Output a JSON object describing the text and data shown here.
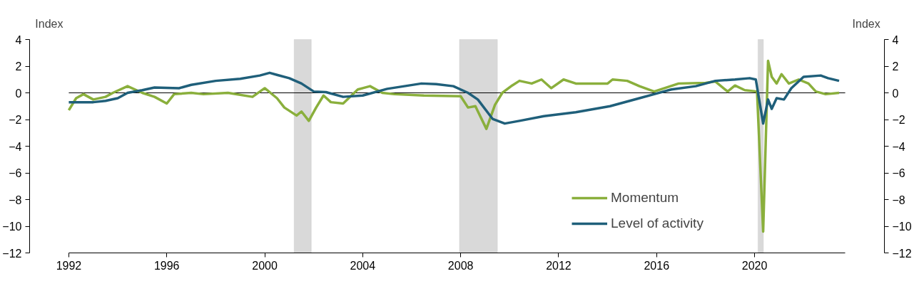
{
  "chart_data": {
    "type": "line",
    "ylabel": "Index",
    "y2label": "Index",
    "xlim": [
      1992,
      2023.7
    ],
    "xticks": [
      1992,
      1996,
      2000,
      2004,
      2008,
      2012,
      2016,
      2020
    ],
    "ylim": [
      -12,
      4
    ],
    "yticks": [
      -12,
      -10,
      -8,
      -6,
      -4,
      -2,
      0,
      2,
      4
    ],
    "y2lim": [
      -12,
      4
    ],
    "y2ticks": [
      -12,
      -10,
      -8,
      -6,
      -4,
      -2,
      0,
      2,
      4
    ],
    "grid": false,
    "legend": "bottom right",
    "marker": "none",
    "line_style": "solid",
    "ref_lines": [
      {
        "axis": "y",
        "value": 0,
        "label": null,
        "color": "#000000"
      }
    ],
    "bands": [
      {
        "axis": "x",
        "from": 2001.2,
        "to": 2001.9,
        "label": null,
        "color": "#d9d9d9"
      },
      {
        "axis": "x",
        "from": 2007.95,
        "to": 2009.5,
        "label": null,
        "color": "#d9d9d9"
      },
      {
        "axis": "x",
        "from": 2020.14,
        "to": 2020.36,
        "label": null,
        "color": "#d9d9d9"
      }
    ],
    "series": [
      {
        "name": "Momentum",
        "color": "#8aaf3c",
        "x": [
          1992,
          1992.3,
          1992.6,
          1993,
          1993.5,
          1993.8,
          1994.4,
          1995,
          1995.5,
          1996,
          1996.3,
          1997,
          1997.5,
          1998.5,
          1999.5,
          2000.0,
          2000.5,
          2000.8,
          2001.3,
          2001.5,
          2001.8,
          2002.1,
          2002.4,
          2002.7,
          2003.2,
          2003.8,
          2004.3,
          2004.8,
          2005.3,
          2006.5,
          2008.0,
          2008.3,
          2008.6,
          2009.05,
          2009.4,
          2009.7,
          2010.1,
          2010.4,
          2010.9,
          2011.3,
          2011.7,
          2012.2,
          2012.7,
          2014.0,
          2014.2,
          2014.8,
          2015.3,
          2015.9,
          2016.9,
          2018.0,
          2018.4,
          2018.9,
          2019.2,
          2019.6,
          2020.1,
          2020.35,
          2020.55,
          2020.7,
          2020.9,
          2021.1,
          2021.4,
          2021.8,
          2022.2,
          2022.5,
          2022.9,
          2023.45
        ],
        "values": [
          -1.3,
          -0.4,
          -0.1,
          -0.5,
          -0.3,
          0.0,
          0.5,
          0.0,
          -0.3,
          -0.8,
          -0.1,
          0.0,
          -0.1,
          0.0,
          -0.3,
          0.35,
          -0.4,
          -1.1,
          -1.7,
          -1.4,
          -2.1,
          -1.1,
          -0.2,
          -0.7,
          -0.8,
          0.25,
          0.5,
          0.0,
          -0.1,
          -0.2,
          -0.25,
          -1.1,
          -1.0,
          -2.7,
          -0.9,
          0.0,
          0.55,
          0.9,
          0.7,
          1.0,
          0.35,
          1.0,
          0.7,
          0.7,
          1.0,
          0.9,
          0.5,
          0.1,
          0.7,
          0.75,
          0.85,
          0.1,
          0.55,
          0.2,
          0.1,
          -10.4,
          2.4,
          1.2,
          0.7,
          1.4,
          0.7,
          1.0,
          0.7,
          0.1,
          -0.1,
          0.0
        ]
      },
      {
        "name": "Level of activity",
        "color": "#1f5f7a",
        "x": [
          1992,
          1993,
          1993.5,
          1994,
          1994.4,
          1995,
          1995.5,
          1996.5,
          1997,
          1998,
          1999,
          1999.8,
          2000.2,
          2000.5,
          2001.0,
          2001.5,
          2002.0,
          2002.5,
          2003.2,
          2004.0,
          2005.0,
          2006.4,
          2007.0,
          2007.7,
          2008.3,
          2008.7,
          2009.3,
          2009.8,
          2010.4,
          2011.4,
          2012.7,
          2014.1,
          2015.3,
          2015.9,
          2016.6,
          2017.6,
          2018.4,
          2019.2,
          2019.8,
          2020.05,
          2020.35,
          2020.55,
          2020.7,
          2020.9,
          2021.2,
          2021.5,
          2022.0,
          2022.7,
          2023.0,
          2023.45
        ],
        "values": [
          -0.7,
          -0.7,
          -0.6,
          -0.4,
          0.0,
          0.2,
          0.4,
          0.35,
          0.6,
          0.9,
          1.05,
          1.3,
          1.5,
          1.35,
          1.1,
          0.7,
          0.1,
          0.05,
          -0.3,
          -0.2,
          0.3,
          0.7,
          0.65,
          0.5,
          0.0,
          -0.5,
          -1.95,
          -2.3,
          -2.1,
          -1.75,
          -1.45,
          -1.0,
          -0.4,
          -0.1,
          0.25,
          0.5,
          0.9,
          1.0,
          1.1,
          1.0,
          -2.3,
          -0.5,
          -1.2,
          -0.4,
          -0.5,
          0.35,
          1.2,
          1.3,
          1.1,
          0.9
        ]
      }
    ]
  }
}
